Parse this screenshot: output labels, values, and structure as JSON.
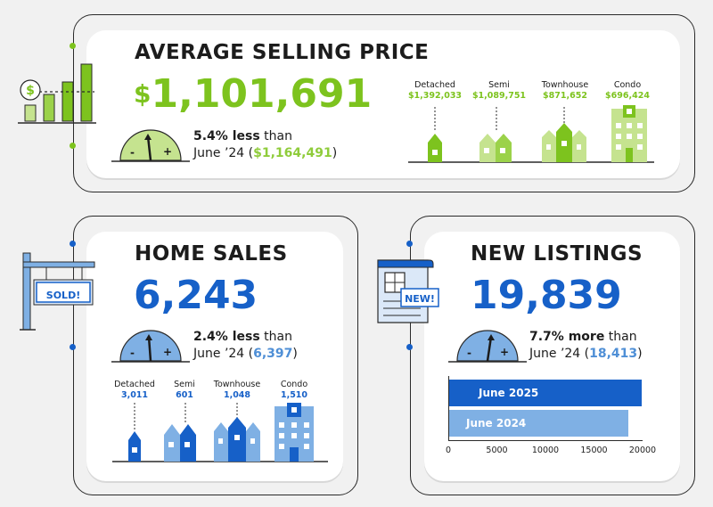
{
  "colors": {
    "green": "#7dc31e",
    "green_light": "#c5e38f",
    "blue": "#1660c8",
    "blue_light": "#7fb0e4",
    "outline": "#2a2a2a"
  },
  "selling_price": {
    "title": "AVERAGE SELLING PRICE",
    "dollar": "$",
    "value": "1,101,691",
    "change_bold": "5.4% less",
    "change_rest": " than",
    "prior_label": "June ’24 (",
    "prior_value": "$1,164,491",
    "prior_close": ")",
    "types": [
      {
        "name": "Detached",
        "value": "$1,392,033"
      },
      {
        "name": "Semi",
        "value": "$1,089,751"
      },
      {
        "name": "Townhouse",
        "value": "$871,652"
      },
      {
        "name": "Condo",
        "value": "$696,424"
      }
    ],
    "icon": "chart-dollar-icon"
  },
  "home_sales": {
    "title": "HOME SALES",
    "value": "6,243",
    "change_bold": "2.4% less",
    "change_rest": " than",
    "prior_label": "June ’24 (",
    "prior_value": "6,397",
    "prior_close": ")",
    "sign_text": "SOLD!",
    "types": [
      {
        "name": "Detached",
        "value": "3,011"
      },
      {
        "name": "Semi",
        "value": "601"
      },
      {
        "name": "Townhouse",
        "value": "1,048"
      },
      {
        "name": "Condo",
        "value": "1,510"
      }
    ],
    "icon": "sold-sign-icon"
  },
  "new_listings": {
    "title": "NEW LISTINGS",
    "value": "19,839",
    "change_bold": "7.7% more",
    "change_rest": " than",
    "prior_label": "June ’24 (",
    "prior_value": "18,413",
    "prior_close": ")",
    "badge": "NEW!",
    "icon": "new-listing-icon"
  },
  "gauge": {
    "minus": "-",
    "plus": "+"
  },
  "chart_data": {
    "type": "bar",
    "orientation": "horizontal",
    "categories": [
      "June 2025",
      "June 2024"
    ],
    "values": [
      19839,
      18413
    ],
    "xlim": [
      0,
      20000
    ],
    "xticks": [
      "0",
      "5000",
      "10000",
      "15000",
      "20000"
    ],
    "grid": false
  }
}
